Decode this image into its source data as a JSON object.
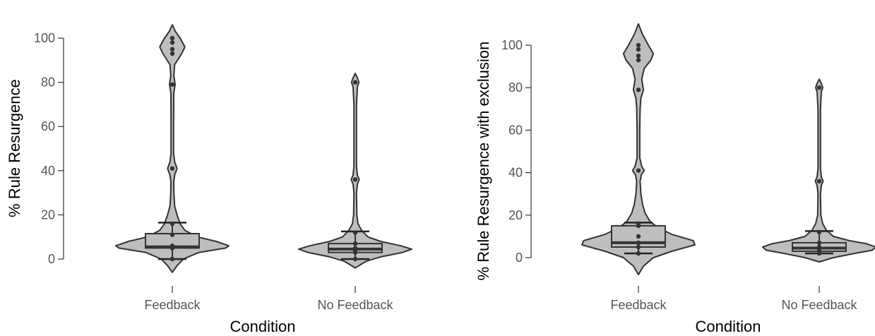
{
  "chart_data": [
    {
      "type": "violin",
      "xlabel": "Condition",
      "ylabel": "% Rule Resurgence",
      "ylim": [
        0,
        100
      ],
      "yticks": [
        0,
        20,
        40,
        60,
        80,
        100
      ],
      "categories": [
        "Feedback",
        "No Feedback"
      ],
      "fill_color": "#bebebe",
      "line_color": "#333333",
      "groups": [
        {
          "name": "Feedback",
          "box": {
            "whisker_low": 0,
            "q1": 5,
            "median": 5.5,
            "q3": 11.5,
            "whisker_high": 16.5
          },
          "violin_extent": [
            -6,
            106
          ],
          "violin_density": [
            [
              -6,
              0
            ],
            [
              -3,
              0.03
            ],
            [
              0,
              0.07
            ],
            [
              3,
              0.17
            ],
            [
              5,
              0.34
            ],
            [
              6,
              0.36
            ],
            [
              8,
              0.28
            ],
            [
              10,
              0.16
            ],
            [
              13,
              0.08
            ],
            [
              16,
              0.05
            ],
            [
              20,
              0.03
            ],
            [
              24,
              0.015
            ],
            [
              30,
              0.01
            ],
            [
              35,
              0.009
            ],
            [
              38,
              0.015
            ],
            [
              41,
              0.03
            ],
            [
              44,
              0.015
            ],
            [
              48,
              0.008
            ],
            [
              60,
              0.008
            ],
            [
              75,
              0.009
            ],
            [
              79,
              0.018
            ],
            [
              83,
              0.01
            ],
            [
              88,
              0.015
            ],
            [
              93,
              0.06
            ],
            [
              96,
              0.08
            ],
            [
              100,
              0.05
            ],
            [
              103,
              0.02
            ],
            [
              106,
              0
            ]
          ],
          "points": [
            0,
            5,
            5,
            6,
            11,
            16,
            41,
            79,
            93,
            95,
            98,
            100
          ]
        },
        {
          "name": "No Feedback",
          "box": {
            "whisker_low": 0,
            "q1": 3,
            "median": 4.5,
            "q3": 7,
            "whisker_high": 12.5
          },
          "violin_extent": [
            -4,
            84
          ],
          "violin_density": [
            [
              -4,
              0
            ],
            [
              -1,
              0.06
            ],
            [
              1,
              0.14
            ],
            [
              3,
              0.26
            ],
            [
              4.5,
              0.31
            ],
            [
              6,
              0.25
            ],
            [
              8,
              0.14
            ],
            [
              10,
              0.07
            ],
            [
              13,
              0.035
            ],
            [
              16,
              0.015
            ],
            [
              20,
              0.009
            ],
            [
              30,
              0.007
            ],
            [
              34,
              0.012
            ],
            [
              36,
              0.022
            ],
            [
              38,
              0.012
            ],
            [
              42,
              0.007
            ],
            [
              70,
              0.007
            ],
            [
              78,
              0.012
            ],
            [
              80,
              0.02
            ],
            [
              82,
              0.012
            ],
            [
              84,
              0
            ]
          ],
          "points": [
            0,
            3,
            4,
            5,
            7,
            12,
            36,
            80
          ]
        }
      ]
    },
    {
      "type": "violin",
      "xlabel": "Condition",
      "ylabel": "% Rule Resurgence with exclusion",
      "ylim": [
        0,
        100
      ],
      "yticks": [
        0,
        20,
        40,
        60,
        80,
        100
      ],
      "categories": [
        "Feedback",
        "No Feedback"
      ],
      "fill_color": "#bebebe",
      "line_color": "#333333",
      "groups": [
        {
          "name": "Feedback",
          "box": {
            "whisker_low": 2,
            "q1": 5,
            "median": 7,
            "q3": 15,
            "whisker_high": 16.5
          },
          "violin_extent": [
            -8,
            110
          ],
          "violin_density": [
            [
              -8,
              0
            ],
            [
              -4,
              0.03
            ],
            [
              0,
              0.09
            ],
            [
              3,
              0.2
            ],
            [
              6,
              0.34
            ],
            [
              8,
              0.33
            ],
            [
              11,
              0.2
            ],
            [
              14,
              0.12
            ],
            [
              17,
              0.07
            ],
            [
              21,
              0.04
            ],
            [
              25,
              0.025
            ],
            [
              30,
              0.015
            ],
            [
              36,
              0.01
            ],
            [
              39,
              0.018
            ],
            [
              41,
              0.035
            ],
            [
              43,
              0.02
            ],
            [
              47,
              0.008
            ],
            [
              60,
              0.008
            ],
            [
              70,
              0.01
            ],
            [
              75,
              0.015
            ],
            [
              79,
              0.03
            ],
            [
              84,
              0.02
            ],
            [
              89,
              0.035
            ],
            [
              93,
              0.075
            ],
            [
              96,
              0.09
            ],
            [
              100,
              0.06
            ],
            [
              105,
              0.025
            ],
            [
              110,
              0
            ]
          ],
          "points": [
            2,
            5,
            7,
            10,
            15,
            16,
            41,
            79,
            93,
            95,
            98,
            100
          ]
        },
        {
          "name": "No Feedback",
          "box": {
            "whisker_low": 2,
            "q1": 3,
            "median": 4.5,
            "q3": 7,
            "whisker_high": 12.5
          },
          "violin_extent": [
            -2,
            84
          ],
          "violin_density": [
            [
              -2,
              0
            ],
            [
              0,
              0.08
            ],
            [
              2,
              0.2
            ],
            [
              3.5,
              0.3
            ],
            [
              5,
              0.32
            ],
            [
              6.5,
              0.27
            ],
            [
              8,
              0.17
            ],
            [
              10,
              0.08
            ],
            [
              13,
              0.04
            ],
            [
              16,
              0.02
            ],
            [
              20,
              0.009
            ],
            [
              30,
              0.007
            ],
            [
              34,
              0.012
            ],
            [
              36,
              0.022
            ],
            [
              38,
              0.012
            ],
            [
              42,
              0.007
            ],
            [
              70,
              0.007
            ],
            [
              78,
              0.012
            ],
            [
              80,
              0.02
            ],
            [
              82,
              0.012
            ],
            [
              84,
              0
            ]
          ],
          "points": [
            2,
            3,
            4,
            5,
            7,
            12,
            36,
            80
          ]
        }
      ]
    }
  ]
}
